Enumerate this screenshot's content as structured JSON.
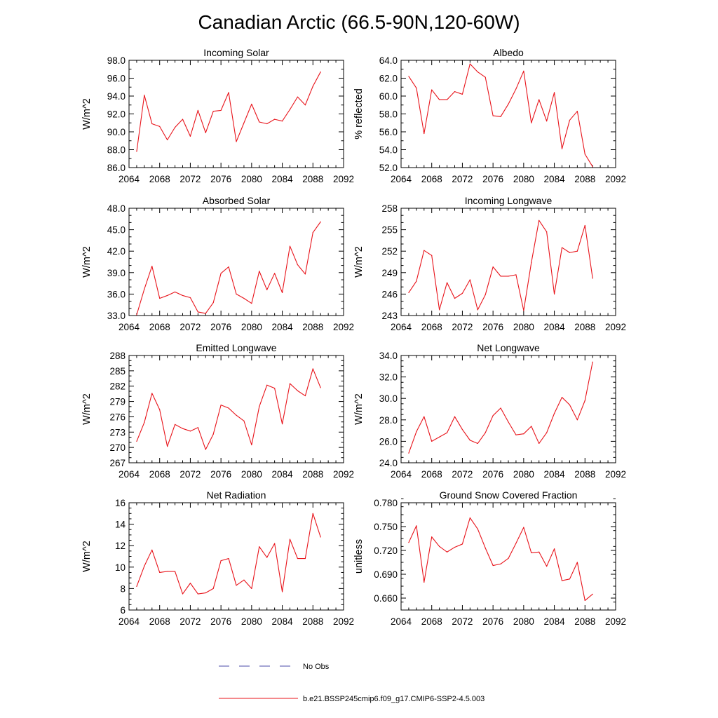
{
  "figure": {
    "title": "Canadian Arctic (66.5-90N,120-60W)",
    "x_axis": {
      "min": 2064,
      "max": 2092,
      "ticks": [
        2064,
        2068,
        2072,
        2076,
        2080,
        2084,
        2088,
        2092
      ],
      "minor_step": 1
    }
  },
  "legend": [
    {
      "label": "No Obs",
      "color": "#4a4aa8",
      "style": "dashed"
    },
    {
      "label": "b.e21.BSSP245cmip6.f09_g17.CMIP6-SSP2-4.5.003",
      "color": "#e8131a",
      "style": "solid"
    }
  ],
  "chart_data": [
    {
      "type": "line",
      "title": "Incoming Solar",
      "xlabel": "",
      "ylabel": "W/m^2",
      "ylim": [
        86,
        98
      ],
      "yticks": [
        "86.0",
        "88.0",
        "90.0",
        "92.0",
        "94.0",
        "96.0",
        "98.0"
      ],
      "yminor": 1,
      "series": [
        {
          "name": "b.e21.BSSP245cmip6.f09_g17.CMIP6-SSP2-4.5.003",
          "color": "#e8131a",
          "x": [
            2065,
            2066,
            2067,
            2068,
            2069,
            2070,
            2071,
            2072,
            2073,
            2074,
            2075,
            2076,
            2077,
            2078,
            2079,
            2080,
            2081,
            2082,
            2083,
            2084,
            2085,
            2086,
            2087,
            2088,
            2089
          ],
          "y": [
            87.8,
            94.1,
            90.9,
            90.6,
            89.1,
            90.5,
            91.4,
            89.5,
            92.4,
            89.9,
            92.3,
            92.4,
            94.4,
            88.9,
            91.0,
            93.1,
            91.1,
            90.9,
            91.4,
            91.2,
            92.5,
            93.9,
            93.0,
            95.1,
            96.7
          ]
        }
      ]
    },
    {
      "type": "line",
      "title": "Albedo",
      "xlabel": "",
      "ylabel": "% reflected",
      "ylim": [
        52,
        64
      ],
      "yticks": [
        "52.0",
        "54.0",
        "56.0",
        "58.0",
        "60.0",
        "62.0",
        "64.0"
      ],
      "yminor": 1,
      "series": [
        {
          "name": "b.e21.BSSP245cmip6.f09_g17.CMIP6-SSP2-4.5.003",
          "color": "#e8131a",
          "x": [
            2065,
            2066,
            2067,
            2068,
            2069,
            2070,
            2071,
            2072,
            2073,
            2074,
            2075,
            2076,
            2077,
            2078,
            2079,
            2080,
            2081,
            2082,
            2083,
            2084,
            2085,
            2086,
            2087,
            2088,
            2089
          ],
          "y": [
            62.2,
            60.9,
            55.8,
            60.7,
            59.6,
            59.6,
            60.5,
            60.2,
            63.6,
            62.7,
            62.1,
            57.8,
            57.7,
            59.1,
            60.8,
            62.8,
            57.0,
            59.6,
            57.2,
            60.4,
            54.1,
            57.3,
            58.3,
            53.5,
            52.1
          ]
        }
      ]
    },
    {
      "type": "line",
      "title": "Absorbed Solar",
      "xlabel": "",
      "ylabel": "W/m^2",
      "ylim": [
        33,
        48
      ],
      "yticks": [
        "33.0",
        "36.0",
        "39.0",
        "42.0",
        "45.0",
        "48.0"
      ],
      "yminor": 1,
      "series": [
        {
          "name": "b.e21.BSSP245cmip6.f09_g17.CMIP6-SSP2-4.5.003",
          "color": "#e8131a",
          "x": [
            2065,
            2066,
            2067,
            2068,
            2069,
            2070,
            2071,
            2072,
            2073,
            2074,
            2075,
            2076,
            2077,
            2078,
            2079,
            2080,
            2081,
            2082,
            2083,
            2084,
            2085,
            2086,
            2087,
            2088,
            2089
          ],
          "y": [
            33.1,
            36.7,
            39.9,
            35.4,
            35.8,
            36.3,
            35.8,
            35.5,
            33.5,
            33.3,
            34.8,
            38.9,
            39.8,
            36.0,
            35.4,
            34.7,
            39.2,
            36.6,
            38.9,
            36.2,
            42.7,
            40.1,
            38.8,
            44.6,
            46.1
          ]
        }
      ]
    },
    {
      "type": "line",
      "title": "Incoming Longwave",
      "xlabel": "",
      "ylabel": "W/m^2",
      "ylim": [
        243,
        258
      ],
      "yticks": [
        "243",
        "246",
        "249",
        "252",
        "255",
        "258"
      ],
      "yminor": 1,
      "series": [
        {
          "name": "b.e21.BSSP245cmip6.f09_g17.CMIP6-SSP2-4.5.003",
          "color": "#e8131a",
          "x": [
            2065,
            2066,
            2067,
            2068,
            2069,
            2070,
            2071,
            2072,
            2073,
            2074,
            2075,
            2076,
            2077,
            2078,
            2079,
            2080,
            2081,
            2082,
            2083,
            2084,
            2085,
            2086,
            2087,
            2088,
            2089
          ],
          "y": [
            246.2,
            247.8,
            252.1,
            251.4,
            243.8,
            247.6,
            245.4,
            246.1,
            248.0,
            243.8,
            245.9,
            249.8,
            248.5,
            248.5,
            248.7,
            243.7,
            250.4,
            256.3,
            254.7,
            246.0,
            252.5,
            251.8,
            252.0,
            255.6,
            248.2
          ]
        }
      ]
    },
    {
      "type": "line",
      "title": "Emitted Longwave",
      "xlabel": "",
      "ylabel": "W/m^2",
      "ylim": [
        267,
        288
      ],
      "yticks": [
        "267",
        "270",
        "273",
        "276",
        "279",
        "282",
        "285",
        "288"
      ],
      "yminor": 1,
      "series": [
        {
          "name": "b.e21.BSSP245cmip6.f09_g17.CMIP6-SSP2-4.5.003",
          "color": "#e8131a",
          "x": [
            2065,
            2066,
            2067,
            2068,
            2069,
            2070,
            2071,
            2072,
            2073,
            2074,
            2075,
            2076,
            2077,
            2078,
            2079,
            2080,
            2081,
            2082,
            2083,
            2084,
            2085,
            2086,
            2087,
            2088,
            2089
          ],
          "y": [
            271.2,
            274.9,
            280.6,
            277.4,
            270.2,
            274.5,
            273.7,
            273.2,
            273.9,
            269.6,
            272.6,
            278.3,
            277.7,
            276.3,
            275.2,
            270.5,
            278.0,
            282.2,
            281.6,
            274.6,
            282.5,
            281.1,
            280.1,
            285.4,
            281.7
          ]
        }
      ]
    },
    {
      "type": "line",
      "title": "Net Longwave",
      "xlabel": "",
      "ylabel": "W/m^2",
      "ylim": [
        24,
        34
      ],
      "yticks": [
        "24.0",
        "26.0",
        "28.0",
        "30.0",
        "32.0",
        "34.0"
      ],
      "yminor": 0.5,
      "series": [
        {
          "name": "b.e21.BSSP245cmip6.f09_g17.CMIP6-SSP2-4.5.003",
          "color": "#e8131a",
          "x": [
            2065,
            2066,
            2067,
            2068,
            2069,
            2070,
            2071,
            2072,
            2073,
            2074,
            2075,
            2076,
            2077,
            2078,
            2079,
            2080,
            2081,
            2082,
            2083,
            2084,
            2085,
            2086,
            2087,
            2088,
            2089
          ],
          "y": [
            24.9,
            26.9,
            28.3,
            26.0,
            26.4,
            26.8,
            28.3,
            27.1,
            26.1,
            25.8,
            26.8,
            28.4,
            29.1,
            27.8,
            26.6,
            26.7,
            27.4,
            25.8,
            26.8,
            28.6,
            30.1,
            29.4,
            28.0,
            29.8,
            33.4
          ]
        }
      ]
    },
    {
      "type": "line",
      "title": "Net Radiation",
      "xlabel": "",
      "ylabel": "W/m^2",
      "ylim": [
        6,
        16
      ],
      "yticks": [
        "6",
        "8",
        "10",
        "12",
        "14",
        "16"
      ],
      "yminor": 0.5,
      "series": [
        {
          "name": "b.e21.BSSP245cmip6.f09_g17.CMIP6-SSP2-4.5.003",
          "color": "#e8131a",
          "x": [
            2065,
            2066,
            2067,
            2068,
            2069,
            2070,
            2071,
            2072,
            2073,
            2074,
            2075,
            2076,
            2077,
            2078,
            2079,
            2080,
            2081,
            2082,
            2083,
            2084,
            2085,
            2086,
            2087,
            2088,
            2089
          ],
          "y": [
            8.2,
            10.1,
            11.6,
            9.5,
            9.6,
            9.6,
            7.5,
            8.5,
            7.5,
            7.6,
            8.0,
            10.6,
            10.8,
            8.3,
            8.8,
            8.0,
            11.9,
            10.9,
            12.2,
            7.7,
            12.6,
            10.8,
            10.8,
            15.0,
            12.8
          ]
        }
      ]
    },
    {
      "type": "line",
      "title": "Ground Snow Covered Fraction",
      "xlabel": "",
      "ylabel": "unitless",
      "ylim": [
        0.645,
        0.78
      ],
      "yticks": [
        "0.660",
        "0.690",
        "0.720",
        "0.750",
        "0.780"
      ],
      "yminor": 0.01,
      "series": [
        {
          "name": "b.e21.BSSP245cmip6.f09_g17.CMIP6-SSP2-4.5.003",
          "color": "#e8131a",
          "x": [
            2065,
            2066,
            2067,
            2068,
            2069,
            2070,
            2071,
            2072,
            2073,
            2074,
            2075,
            2076,
            2077,
            2078,
            2079,
            2080,
            2081,
            2082,
            2083,
            2084,
            2085,
            2086,
            2087,
            2088,
            2089
          ],
          "y": [
            0.73,
            0.751,
            0.68,
            0.737,
            0.725,
            0.718,
            0.724,
            0.728,
            0.761,
            0.747,
            0.723,
            0.701,
            0.703,
            0.71,
            0.729,
            0.749,
            0.717,
            0.718,
            0.7,
            0.722,
            0.682,
            0.684,
            0.705,
            0.657,
            0.665
          ]
        }
      ]
    }
  ]
}
